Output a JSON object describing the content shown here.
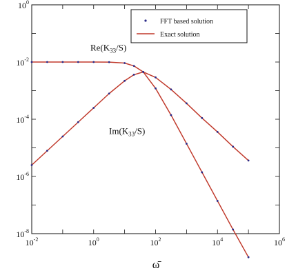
{
  "chart_data": {
    "type": "line",
    "title": "",
    "xlabel": "ω̄",
    "ylabel": "",
    "xscale": "log",
    "yscale": "log",
    "xlim": [
      0.01,
      1000000
    ],
    "ylim": [
      1e-08,
      1
    ],
    "x_ticks": [
      {
        "value": 0.01,
        "base": "10",
        "exp": "-2"
      },
      {
        "value": 1,
        "base": "10",
        "exp": "0"
      },
      {
        "value": 100,
        "base": "10",
        "exp": "2"
      },
      {
        "value": 10000,
        "base": "10",
        "exp": "4"
      },
      {
        "value": 1000000,
        "base": "10",
        "exp": "6"
      }
    ],
    "y_ticks": [
      {
        "value": 1e-08,
        "base": "10",
        "exp": "-8"
      },
      {
        "value": 1e-06,
        "base": "10",
        "exp": "-6"
      },
      {
        "value": 0.0001,
        "base": "10",
        "exp": "-4"
      },
      {
        "value": 0.01,
        "base": "10",
        "exp": "-2"
      },
      {
        "value": 1,
        "base": "10",
        "exp": "0"
      }
    ],
    "grid": false,
    "legend_position": "top-right",
    "legend": [
      {
        "label": "FFT based solution",
        "style": "marker",
        "color": "#2a2a88"
      },
      {
        "label": "Exact solution",
        "style": "line",
        "color": "#c0392b"
      }
    ],
    "series": [
      {
        "curve": "Re(K33/S)",
        "color": "#c0392b",
        "x": [
          0.01,
          0.0316,
          0.1,
          0.316,
          1,
          3.16,
          10,
          20,
          40,
          100,
          316,
          1000,
          3162,
          10000,
          31623,
          100000
        ],
        "y": [
          0.01,
          0.01,
          0.01,
          0.01,
          0.01,
          0.0099,
          0.0092,
          0.0073,
          0.0045,
          0.0012,
          0.00014,
          1.4e-05,
          1.4e-06,
          1.4e-07,
          1.4e-08,
          1.5e-09
        ]
      },
      {
        "curve": "Im(K33/S)",
        "color": "#c0392b",
        "x": [
          0.01,
          0.0316,
          0.1,
          0.316,
          1,
          3.16,
          10,
          20,
          40,
          100,
          316,
          1000,
          3162,
          10000,
          31623,
          100000
        ],
        "y": [
          2.5e-06,
          7.9e-06,
          2.5e-05,
          7.9e-05,
          0.00025,
          0.00079,
          0.0022,
          0.0036,
          0.0045,
          0.0029,
          0.0011,
          0.00036,
          0.00011,
          3.6e-05,
          1.1e-05,
          3.6e-06
        ]
      }
    ],
    "annotations": [
      {
        "text_main": "Re(K",
        "text_sub": "33",
        "text_end": "/S)",
        "x": 3,
        "y": 0.025
      },
      {
        "text_main": "Im(K",
        "text_sub": "33",
        "text_end": "/S)",
        "x": 12,
        "y": 3e-05
      }
    ]
  }
}
